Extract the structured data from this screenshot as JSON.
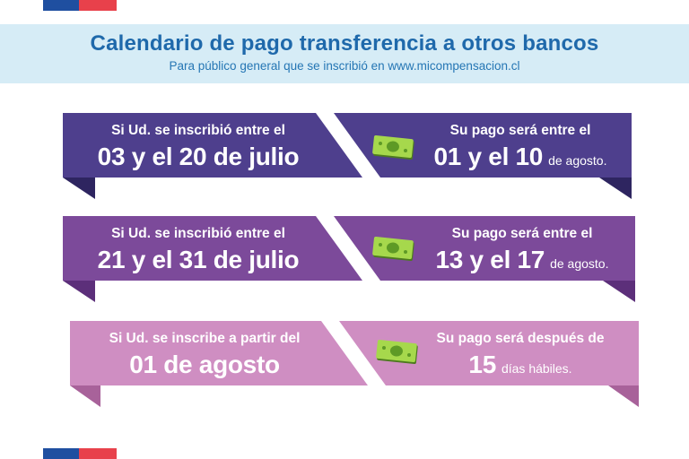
{
  "header": {
    "title": "Calendario de pago transferencia a otros bancos",
    "subtitle": "Para público general que se inscribió en www.micompensacion.cl"
  },
  "rows": [
    {
      "left_label": "Si Ud. se inscribió entre el",
      "left_value": "03 y el 20 de julio",
      "right_label": "Su pago será entre el",
      "right_value": "01 y el 10",
      "right_unit": "de agosto.",
      "color": "#4e3f8d"
    },
    {
      "left_label": "Si Ud. se inscribió entre el",
      "left_value": "21 y el 31 de julio",
      "right_label": "Su pago será entre el",
      "right_value": "13 y el 17",
      "right_unit": "de agosto.",
      "color": "#7c4a9a"
    },
    {
      "left_label": "Si Ud. se inscribe a partir del",
      "left_value": "01 de agosto",
      "right_label": "Su pago será después de",
      "right_value": "15",
      "right_unit": "días hábiles.",
      "color": "#cf8ec2"
    }
  ],
  "icons": {
    "money": "money-bill-icon"
  },
  "colors": {
    "flag_blue": "#1f4fa0",
    "flag_red": "#e8414b",
    "header_bg": "#d6ecf6",
    "title": "#1f69ab"
  }
}
